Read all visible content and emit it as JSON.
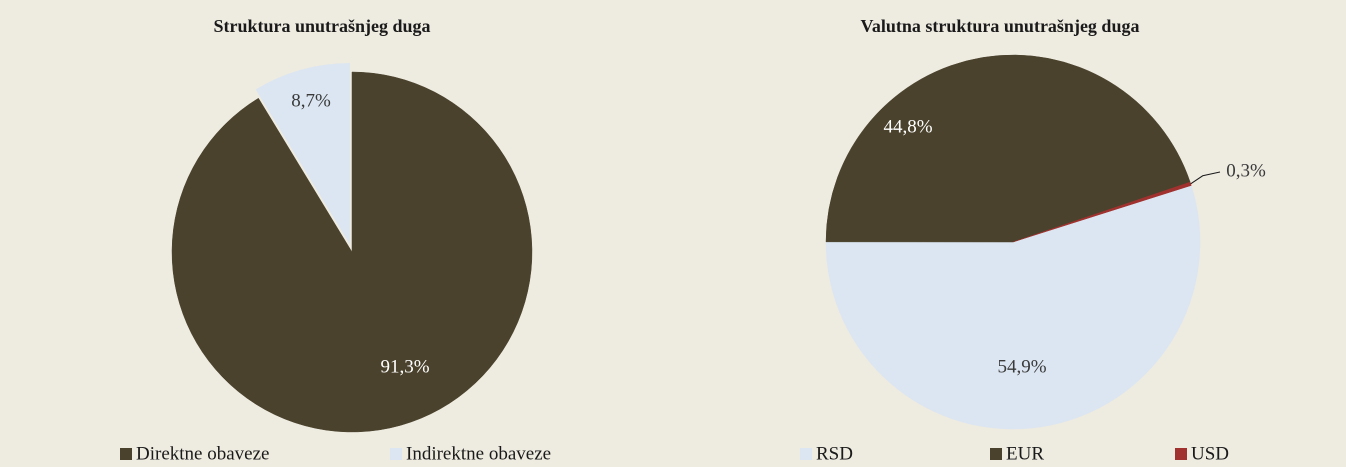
{
  "chart_data": [
    {
      "type": "pie",
      "title": "Struktura unutrašnjeg duga",
      "categories": [
        "Direktne obaveze",
        "Indirektne obaveze"
      ],
      "values": [
        91.3,
        8.7
      ],
      "value_labels": [
        "91,3%",
        "8,7%"
      ],
      "colors": [
        "#4a422c",
        "#dce6f2"
      ]
    },
    {
      "type": "pie",
      "title": "Valutna struktura unutrašnjeg duga",
      "categories": [
        "RSD",
        "EUR",
        "USD"
      ],
      "values": [
        54.9,
        44.8,
        0.3
      ],
      "value_labels": [
        "54,9%",
        "44,8%",
        "0,3%"
      ],
      "colors": [
        "#dce6f2",
        "#4a422c",
        "#a0312e"
      ]
    }
  ]
}
